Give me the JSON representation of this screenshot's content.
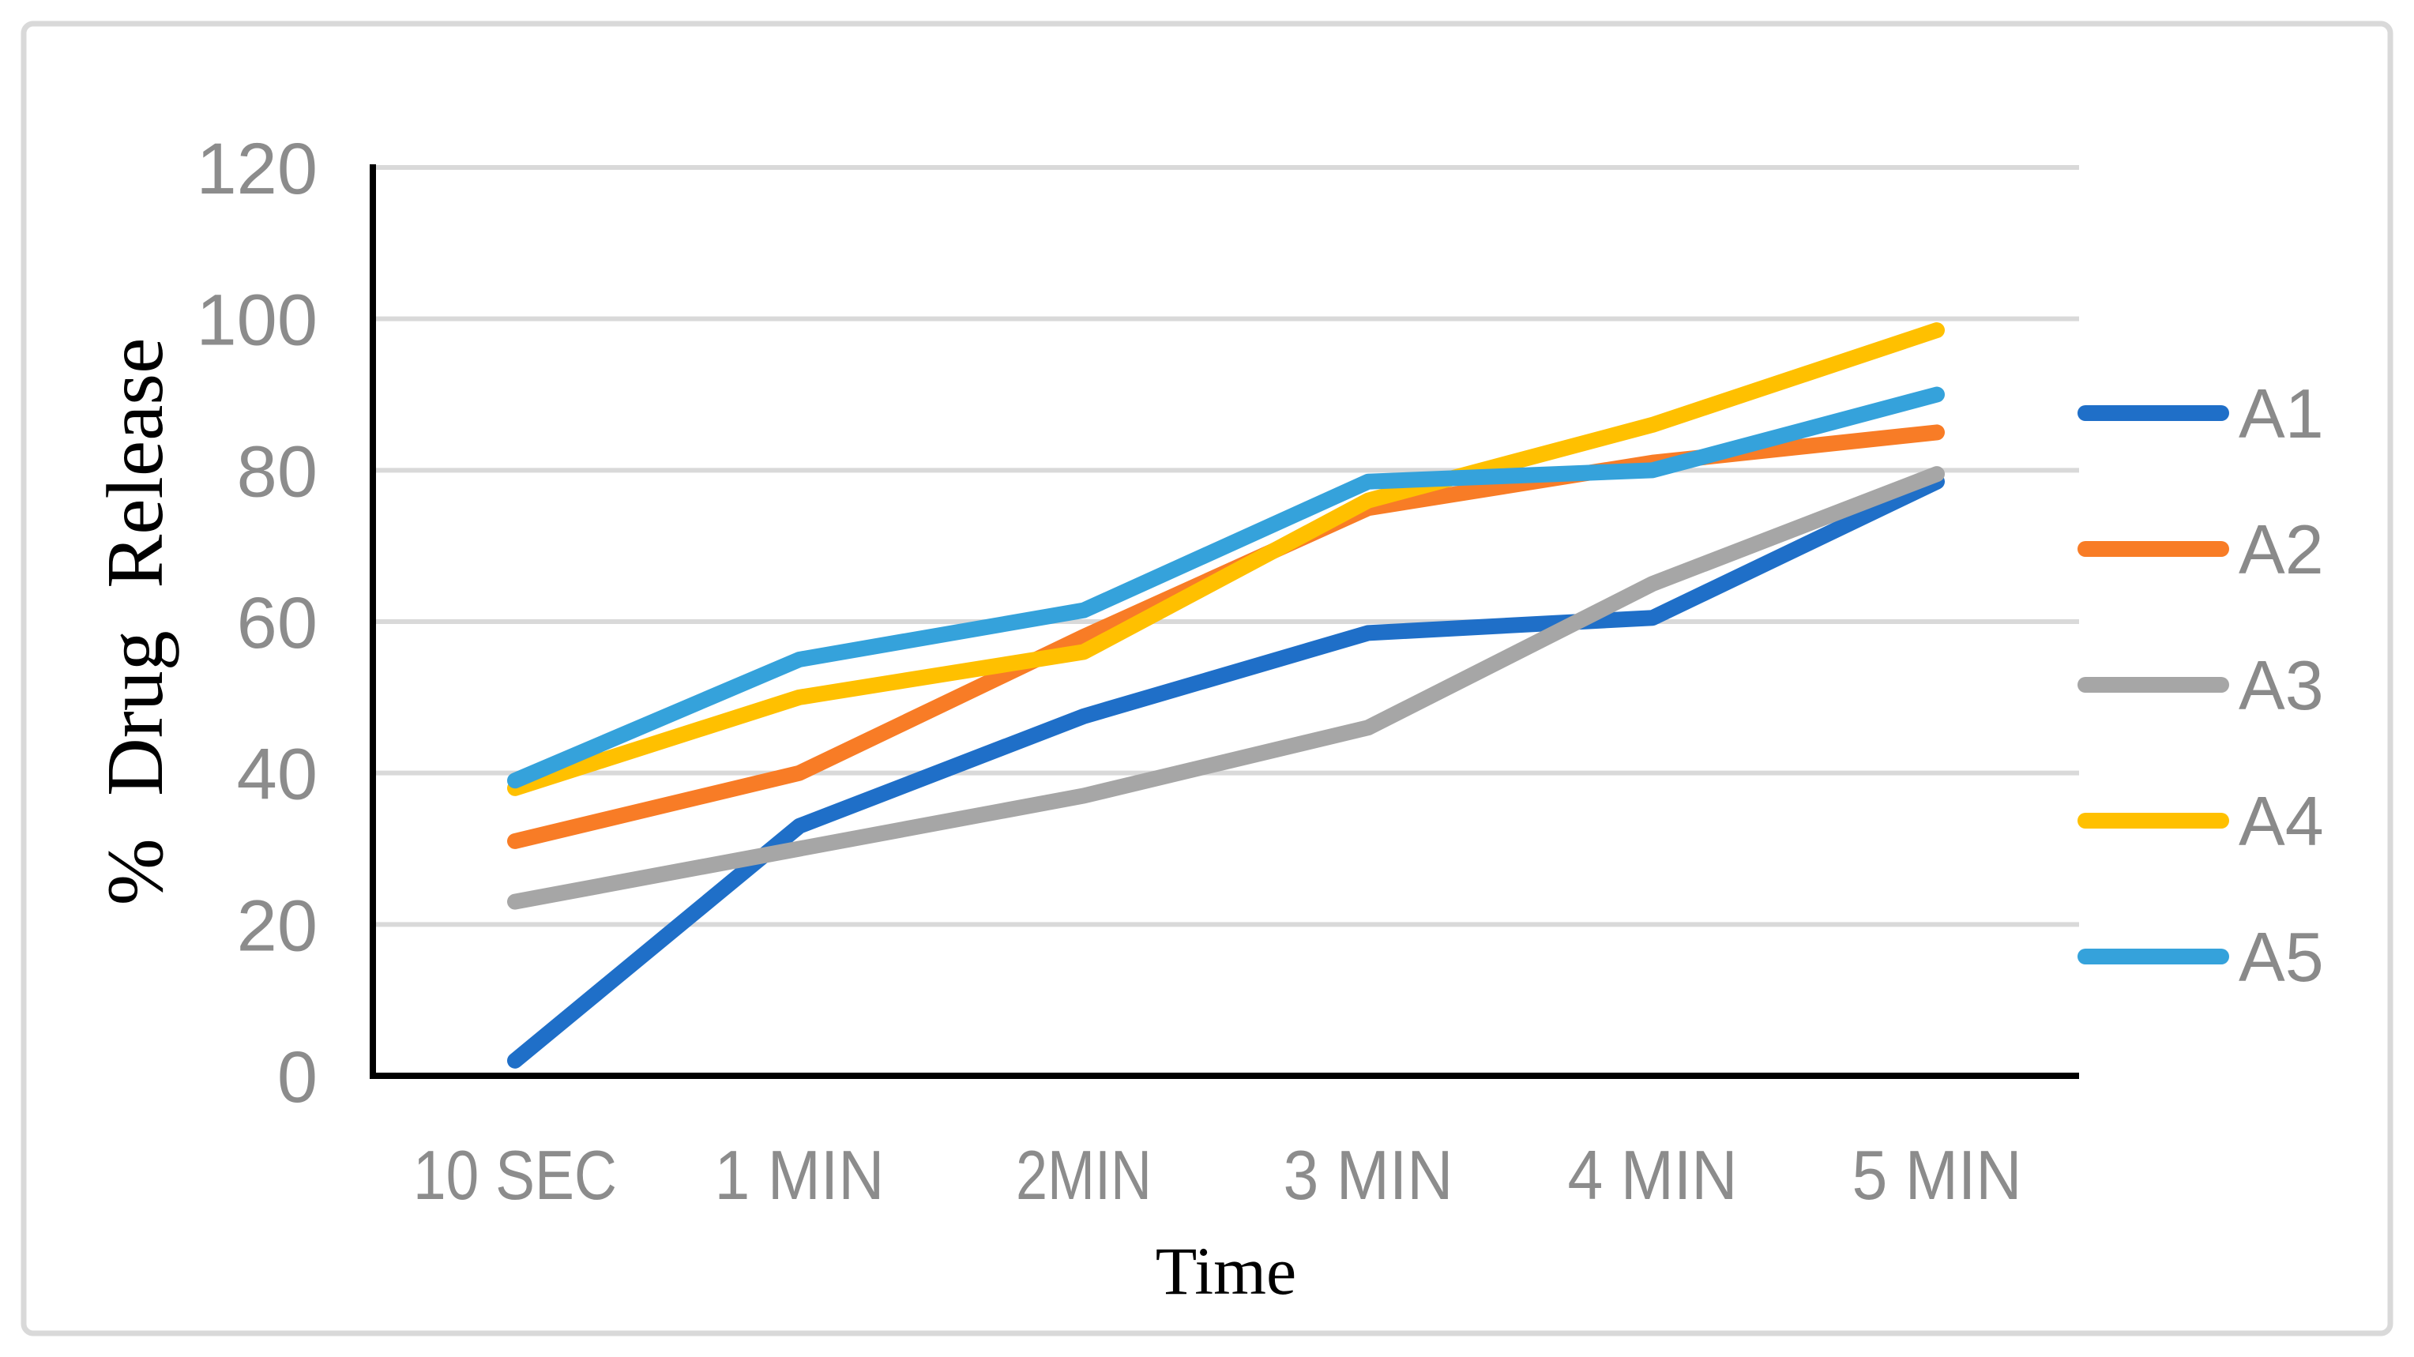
{
  "figure": {
    "background": "#FFFFFF",
    "border_color": "#D9D9D9"
  },
  "chart_data": {
    "type": "line",
    "title": "",
    "xlabel": "Time",
    "ylabel": "% Drug Release",
    "categories": [
      "10 SEC",
      "1 MIN",
      "2MIN",
      "3 MIN",
      "4 MIN",
      "5 MIN"
    ],
    "series": [
      {
        "name": "A1",
        "color": "#1F6FC8",
        "values": [
          2,
          33,
          47.5,
          58.5,
          60.5,
          78.5
        ]
      },
      {
        "name": "A2",
        "color": "#F87C26",
        "values": [
          31,
          40,
          58,
          75,
          81,
          85
        ]
      },
      {
        "name": "A3",
        "color": "#A6A6A6",
        "values": [
          23,
          30,
          37,
          46,
          65,
          79.5
        ]
      },
      {
        "name": "A4",
        "color": "#FFC000",
        "values": [
          38,
          50,
          56,
          76,
          86,
          98.5
        ]
      },
      {
        "name": "A5",
        "color": "#35A2DB",
        "values": [
          39,
          55,
          61.5,
          78.5,
          80,
          90
        ]
      }
    ],
    "ylim": [
      0,
      120
    ],
    "yticks": [
      0,
      20,
      40,
      60,
      80,
      100,
      120
    ],
    "grid": true,
    "legend_position": "right",
    "axis_color": "#000000",
    "gridline_color": "#D9D9D9",
    "tick_label_color": "#8C8C8C",
    "legend_label_color": "#8A8A8A"
  }
}
